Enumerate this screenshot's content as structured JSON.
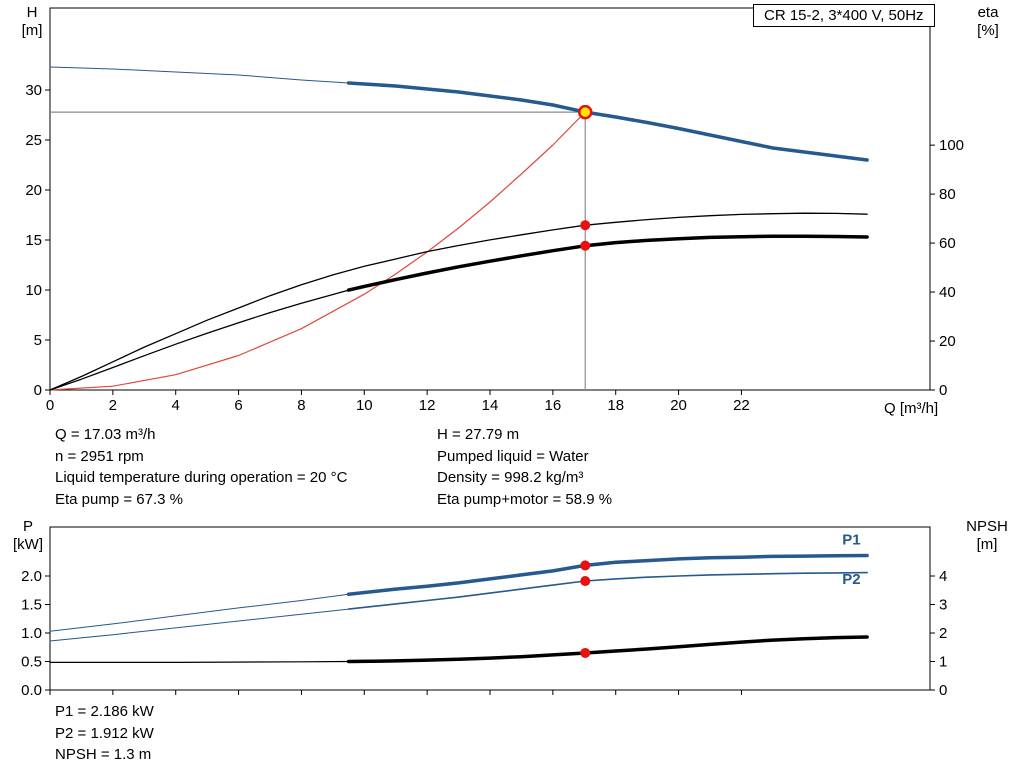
{
  "title_box": {
    "text": "CR 15-2, 3*400 V, 50Hz"
  },
  "axis_labels": {
    "h_symbol": "H",
    "h_unit": "[m]",
    "eta_symbol": "eta",
    "eta_unit": "[%]",
    "q_label": "Q [m³/h]",
    "p_symbol": "P",
    "p_unit": "[kW]",
    "npsh_symbol": "NPSH",
    "npsh_unit": "[m]"
  },
  "duty_info": {
    "left": [
      "Q = 17.03 m³/h",
      "n = 2951 rpm",
      "Liquid temperature during operation = 20 °C",
      "Eta pump = 67.3 %"
    ],
    "right": [
      "H = 27.79 m",
      "Pumped liquid = Water",
      "Density = 998.2 kg/m³",
      "Eta pump+motor = 58.9 %"
    ]
  },
  "power_info": [
    "P1 = 2.186 kW",
    "P2 = 1.912 kW",
    "NPSH = 1.3 m"
  ],
  "colors": {
    "blue": "#25598f",
    "red": "#de4a3c",
    "red_dot": "#e8110e",
    "yellow": "#ffe400",
    "gray": "#8c8c8c",
    "black": "#000000"
  },
  "chart_data": [
    {
      "id": "top",
      "type": "line",
      "title": "CR 15-2, 3*400 V, 50Hz",
      "xlabel": "Q [m³/h]",
      "ylabel_left": "H [m]",
      "ylabel_right": "eta [%]",
      "grid": false,
      "xlim": [
        0,
        28
      ],
      "ylim_left": [
        0,
        38.2
      ],
      "ylim_right": [
        0,
        156
      ],
      "x_ticks": {
        "values": [
          0,
          2,
          4,
          6,
          8,
          10,
          12,
          14,
          16,
          18,
          20,
          22
        ],
        "labels": [
          "0",
          "2",
          "4",
          "6",
          "8",
          "10",
          "12",
          "14",
          "16",
          "18",
          "20",
          "22"
        ]
      },
      "y_ticks_left": {
        "values": [
          0,
          5,
          10,
          15,
          20,
          25,
          30
        ],
        "labels": [
          "0",
          "5",
          "10",
          "15",
          "20",
          "25",
          "30"
        ]
      },
      "y_ticks_right": {
        "values": [
          0,
          20,
          40,
          60,
          80,
          100
        ],
        "labels": [
          "0",
          "20",
          "40",
          "60",
          "80",
          "100"
        ]
      },
      "show_x_tick_labels": true,
      "crosshair": {
        "q": 17.03,
        "h": 27.79
      },
      "series": [
        {
          "name": "pump-curve-extension",
          "axis": "left",
          "color": "blue",
          "width": 1,
          "points": [
            [
              0,
              32.3
            ],
            [
              2,
              32.1
            ],
            [
              4,
              31.8
            ],
            [
              6,
              31.5
            ],
            [
              8,
              31.0
            ],
            [
              9.5,
              30.7
            ]
          ]
        },
        {
          "name": "pump-curve",
          "axis": "left",
          "color": "blue",
          "width": 3.5,
          "points": [
            [
              9.5,
              30.7
            ],
            [
              11,
              30.4
            ],
            [
              13,
              29.8
            ],
            [
              15,
              29.0
            ],
            [
              16,
              28.5
            ],
            [
              17.03,
              27.79
            ],
            [
              18,
              27.3
            ],
            [
              19,
              26.75
            ],
            [
              20,
              26.15
            ],
            [
              21,
              25.5
            ],
            [
              22,
              24.85
            ],
            [
              23,
              24.2
            ],
            [
              24,
              23.8
            ],
            [
              25,
              23.4
            ],
            [
              26,
              23.0
            ]
          ]
        },
        {
          "name": "system-curve",
          "axis": "left",
          "color": "red",
          "width": 1.2,
          "points": [
            [
              0,
              0
            ],
            [
              2,
              0.38
            ],
            [
              4,
              1.53
            ],
            [
              6,
              3.45
            ],
            [
              8,
              6.13
            ],
            [
              10,
              9.58
            ],
            [
              11,
              11.6
            ],
            [
              12,
              13.8
            ],
            [
              13,
              16.2
            ],
            [
              14,
              18.8
            ],
            [
              15,
              21.6
            ],
            [
              16,
              24.5
            ],
            [
              17.03,
              27.79
            ]
          ]
        },
        {
          "name": "eta-pump-curve",
          "axis": "right",
          "color": "black",
          "width": 1.3,
          "points": [
            [
              0,
              0
            ],
            [
              1,
              5.5
            ],
            [
              2,
              11.5
            ],
            [
              3,
              17.5
            ],
            [
              4,
              23
            ],
            [
              5,
              28.5
            ],
            [
              6,
              33.5
            ],
            [
              7,
              38.5
            ],
            [
              8,
              43
            ],
            [
              9,
              47
            ],
            [
              10,
              50.5
            ],
            [
              11,
              53.5
            ],
            [
              12,
              56.5
            ],
            [
              13,
              59
            ],
            [
              14,
              61.3
            ],
            [
              15,
              63.4
            ],
            [
              16,
              65.4
            ],
            [
              17.03,
              67.3
            ],
            [
              18,
              68.5
            ],
            [
              19,
              69.6
            ],
            [
              20,
              70.5
            ],
            [
              21,
              71.2
            ],
            [
              22,
              71.7
            ],
            [
              23,
              72
            ],
            [
              24,
              72.2
            ],
            [
              25,
              72.1
            ],
            [
              26,
              71.8
            ]
          ]
        },
        {
          "name": "eta-pump-motor-extension",
          "axis": "right",
          "color": "black",
          "width": 1.3,
          "points": [
            [
              0,
              0
            ],
            [
              1,
              4.4
            ],
            [
              2,
              9.2
            ],
            [
              3,
              14
            ],
            [
              4,
              18.7
            ],
            [
              5,
              23.2
            ],
            [
              6,
              27.5
            ],
            [
              7,
              31.6
            ],
            [
              8,
              35.4
            ],
            [
              9,
              39
            ],
            [
              9.5,
              40.8
            ]
          ]
        },
        {
          "name": "eta-pump-motor-curve",
          "axis": "right",
          "color": "black",
          "width": 3.5,
          "points": [
            [
              9.5,
              40.8
            ],
            [
              10,
              42.3
            ],
            [
              11,
              45.1
            ],
            [
              12,
              47.8
            ],
            [
              13,
              50.3
            ],
            [
              14,
              52.6
            ],
            [
              15,
              54.8
            ],
            [
              16,
              56.9
            ],
            [
              17.03,
              58.9
            ],
            [
              18,
              60.2
            ],
            [
              19,
              61.1
            ],
            [
              20,
              61.8
            ],
            [
              21,
              62.3
            ],
            [
              22,
              62.6
            ],
            [
              23,
              62.8
            ],
            [
              24,
              62.8
            ],
            [
              25,
              62.7
            ],
            [
              26,
              62.5
            ]
          ]
        }
      ],
      "markers": [
        {
          "name": "duty-point",
          "axis": "left",
          "q": 17.03,
          "v": 27.79,
          "type": "duty"
        },
        {
          "name": "eta-pump-point",
          "axis": "right",
          "q": 17.03,
          "v": 67.3,
          "type": "dot"
        },
        {
          "name": "eta-pump-motor-point",
          "axis": "right",
          "q": 17.03,
          "v": 58.9,
          "type": "dot"
        }
      ],
      "curve_labels": []
    },
    {
      "id": "bottom",
      "type": "line",
      "title": "",
      "xlabel": "Q [m³/h]",
      "ylabel_left": "P [kW]",
      "ylabel_right": "NPSH [m]",
      "grid": false,
      "xlim": [
        0,
        28
      ],
      "ylim_left": [
        0,
        2.86
      ],
      "ylim_right": [
        0,
        5.72
      ],
      "x_ticks": {
        "values": [
          0,
          2,
          4,
          6,
          8,
          10,
          12,
          14,
          16,
          18,
          20,
          22
        ],
        "labels": []
      },
      "y_ticks_left": {
        "values": [
          0,
          0.5,
          1,
          1.5,
          2
        ],
        "labels": [
          "0.0",
          "0.5",
          "1.0",
          "1.5",
          "2.0"
        ]
      },
      "y_ticks_right": {
        "values": [
          0,
          1,
          2,
          3,
          4
        ],
        "labels": [
          "0",
          "1",
          "2",
          "3",
          "4"
        ]
      },
      "show_x_tick_labels": false,
      "crosshair": null,
      "series": [
        {
          "name": "p1-curve-extension",
          "axis": "left",
          "color": "blue",
          "width": 1,
          "points": [
            [
              0,
              1.03
            ],
            [
              2,
              1.16
            ],
            [
              4,
              1.3
            ],
            [
              6,
              1.44
            ],
            [
              8,
              1.57
            ],
            [
              9.5,
              1.68
            ]
          ]
        },
        {
          "name": "p1-curve",
          "axis": "left",
          "color": "blue",
          "width": 3.5,
          "points": [
            [
              9.5,
              1.68
            ],
            [
              11,
              1.77
            ],
            [
              12,
              1.82
            ],
            [
              13,
              1.88
            ],
            [
              14,
              1.95
            ],
            [
              15,
              2.02
            ],
            [
              16,
              2.09
            ],
            [
              17.03,
              2.186
            ],
            [
              18,
              2.24
            ],
            [
              19,
              2.27
            ],
            [
              20,
              2.3
            ],
            [
              21,
              2.32
            ],
            [
              22,
              2.33
            ],
            [
              23,
              2.345
            ],
            [
              24,
              2.35
            ],
            [
              25,
              2.355
            ],
            [
              26,
              2.36
            ]
          ]
        },
        {
          "name": "p2-curve-extension",
          "axis": "left",
          "color": "blue",
          "width": 1,
          "points": [
            [
              0,
              0.86
            ],
            [
              2,
              0.97
            ],
            [
              4,
              1.09
            ],
            [
              6,
              1.21
            ],
            [
              8,
              1.33
            ],
            [
              9.5,
              1.42
            ]
          ]
        },
        {
          "name": "p2-curve",
          "axis": "left",
          "color": "blue",
          "width": 1.6,
          "points": [
            [
              9.5,
              1.42
            ],
            [
              11,
              1.51
            ],
            [
              12,
              1.57
            ],
            [
              13,
              1.63
            ],
            [
              14,
              1.7
            ],
            [
              15,
              1.77
            ],
            [
              16,
              1.84
            ],
            [
              17.03,
              1.912
            ],
            [
              18,
              1.95
            ],
            [
              19,
              1.98
            ],
            [
              20,
              2.0
            ],
            [
              21,
              2.02
            ],
            [
              22,
              2.03
            ],
            [
              23,
              2.04
            ],
            [
              24,
              2.05
            ],
            [
              25,
              2.055
            ],
            [
              26,
              2.06
            ]
          ]
        },
        {
          "name": "npsh-curve-extension",
          "axis": "right",
          "color": "black",
          "width": 1.2,
          "points": [
            [
              0,
              0.97
            ],
            [
              4,
              0.97
            ],
            [
              8,
              0.99
            ],
            [
              9.5,
              1.0
            ]
          ]
        },
        {
          "name": "npsh-curve",
          "axis": "right",
          "color": "black",
          "width": 3.5,
          "points": [
            [
              9.5,
              1.0
            ],
            [
              11,
              1.02
            ],
            [
              12,
              1.05
            ],
            [
              13,
              1.08
            ],
            [
              14,
              1.12
            ],
            [
              15,
              1.17
            ],
            [
              16,
              1.23
            ],
            [
              17.03,
              1.3
            ],
            [
              18,
              1.37
            ],
            [
              19,
              1.44
            ],
            [
              20,
              1.52
            ],
            [
              21,
              1.6
            ],
            [
              22,
              1.68
            ],
            [
              23,
              1.75
            ],
            [
              24,
              1.8
            ],
            [
              25,
              1.84
            ],
            [
              26,
              1.86
            ]
          ]
        }
      ],
      "markers": [
        {
          "name": "p1-point",
          "axis": "left",
          "q": 17.03,
          "v": 2.186,
          "type": "dot"
        },
        {
          "name": "p2-point",
          "axis": "left",
          "q": 17.03,
          "v": 1.912,
          "type": "dot"
        },
        {
          "name": "npsh-point",
          "axis": "right",
          "q": 17.03,
          "v": 1.3,
          "type": "dot"
        }
      ],
      "curve_labels": [
        {
          "text": "P1",
          "q": 25.5,
          "v": 2.55,
          "color": "blue"
        },
        {
          "text": "P2",
          "q": 25.5,
          "v": 1.86,
          "color": "blue"
        }
      ]
    }
  ]
}
